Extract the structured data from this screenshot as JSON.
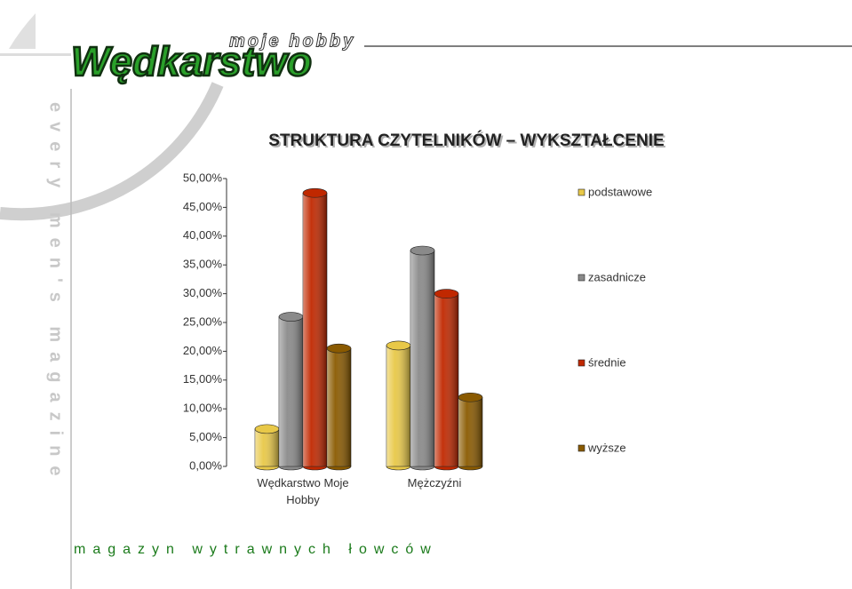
{
  "logo": {
    "title": "Wędkarstwo",
    "subtitle": "moje hobby"
  },
  "side_text": "every men's magazine",
  "footer": "magazyn wytrawnych łowców",
  "chart_data": {
    "type": "bar3d",
    "title": "STRUKTURA CZYTELNIKÓW – WYKSZTAŁCENIE",
    "categories": [
      "Wędkarstwo Moje Hobby",
      "Mężczyźni"
    ],
    "series": [
      {
        "name": "podstawowe",
        "color": "#e8c848",
        "values": [
          6.5,
          21
        ]
      },
      {
        "name": "zasadnicze",
        "color": "#8a8a8a",
        "values": [
          26,
          37.5
        ]
      },
      {
        "name": "średnie",
        "color": "#c02800",
        "values": [
          47.5,
          30
        ]
      },
      {
        "name": "wyższe",
        "color": "#8a5a00",
        "values": [
          20.5,
          12
        ]
      }
    ],
    "ylim": [
      0,
      50
    ],
    "yticks": [
      {
        "value": 0,
        "label": "0,00%"
      },
      {
        "value": 5,
        "label": "5,00%"
      },
      {
        "value": 10,
        "label": "10,00%"
      },
      {
        "value": 15,
        "label": "15,00%"
      },
      {
        "value": 20,
        "label": "20,00%"
      },
      {
        "value": 25,
        "label": "25,00%"
      },
      {
        "value": 30,
        "label": "30,00%"
      },
      {
        "value": 35,
        "label": "35,00%"
      },
      {
        "value": 40,
        "label": "40,00%"
      },
      {
        "value": 45,
        "label": "45,00%"
      },
      {
        "value": 50,
        "label": "50,00%"
      }
    ],
    "legend": "right"
  }
}
